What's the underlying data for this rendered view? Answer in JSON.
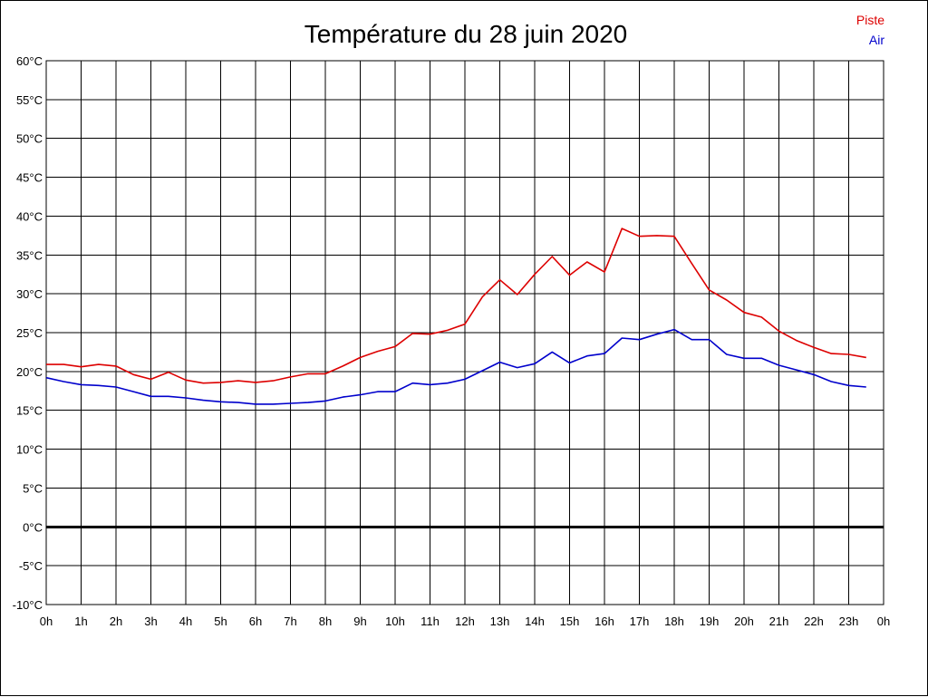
{
  "chart_data": {
    "type": "line",
    "title": "Température du 28 juin 2020",
    "xlabel": "",
    "ylabel": "",
    "x_tick_labels": [
      "0h",
      "1h",
      "2h",
      "3h",
      "4h",
      "5h",
      "6h",
      "7h",
      "8h",
      "9h",
      "10h",
      "11h",
      "12h",
      "13h",
      "14h",
      "15h",
      "16h",
      "17h",
      "18h",
      "19h",
      "20h",
      "21h",
      "22h",
      "23h",
      "0h"
    ],
    "y_tick_labels": [
      "60°C",
      "55°C",
      "50°C",
      "45°C",
      "40°C",
      "35°C",
      "30°C",
      "25°C",
      "20°C",
      "15°C",
      "10°C",
      "5°C",
      "0°C",
      "-5°C",
      "-10°C"
    ],
    "xlim": [
      0,
      24
    ],
    "ylim": [
      -10,
      60
    ],
    "grid": true,
    "zero_line": true,
    "legend_placement": "top-right",
    "x": [
      0,
      0.5,
      1,
      1.5,
      2,
      2.5,
      3,
      3.5,
      4,
      4.5,
      5,
      5.5,
      6,
      6.5,
      7,
      7.5,
      8,
      8.5,
      9,
      9.5,
      10,
      10.5,
      11,
      11.5,
      12,
      12.5,
      13,
      13.5,
      14,
      14.5,
      15,
      15.5,
      16,
      16.5,
      17,
      17.5,
      18,
      18.5,
      19,
      19.5,
      20,
      20.5,
      21,
      21.5,
      22,
      22.5,
      23,
      23.5
    ],
    "series": [
      {
        "name": "Piste",
        "color": "#dd0000",
        "values": [
          20.9,
          20.9,
          20.6,
          20.9,
          20.7,
          19.6,
          19.0,
          19.9,
          18.9,
          18.5,
          18.6,
          18.8,
          18.6,
          18.8,
          19.3,
          19.7,
          19.7,
          20.7,
          21.8,
          22.6,
          23.2,
          24.9,
          24.8,
          25.3,
          26.1,
          29.6,
          31.8,
          29.9,
          32.5,
          34.8,
          32.4,
          34.1,
          32.8,
          38.4,
          37.4,
          37.5,
          37.4,
          33.9,
          30.5,
          29.2,
          27.6,
          27.0,
          25.2,
          24.0,
          23.1,
          22.3,
          22.2,
          21.8
        ]
      },
      {
        "name": "Air",
        "color": "#0000cc",
        "values": [
          19.2,
          18.7,
          18.3,
          18.2,
          18.0,
          17.4,
          16.8,
          16.8,
          16.6,
          16.3,
          16.1,
          16.0,
          15.8,
          15.8,
          15.9,
          16.0,
          16.2,
          16.7,
          17.0,
          17.4,
          17.4,
          18.5,
          18.3,
          18.5,
          19.0,
          20.1,
          21.2,
          20.5,
          21.0,
          22.5,
          21.1,
          22.0,
          22.3,
          24.3,
          24.1,
          24.8,
          25.4,
          24.1,
          24.1,
          22.2,
          21.7,
          21.7,
          20.8,
          20.2,
          19.6,
          18.7,
          18.2,
          18.0
        ]
      }
    ]
  }
}
